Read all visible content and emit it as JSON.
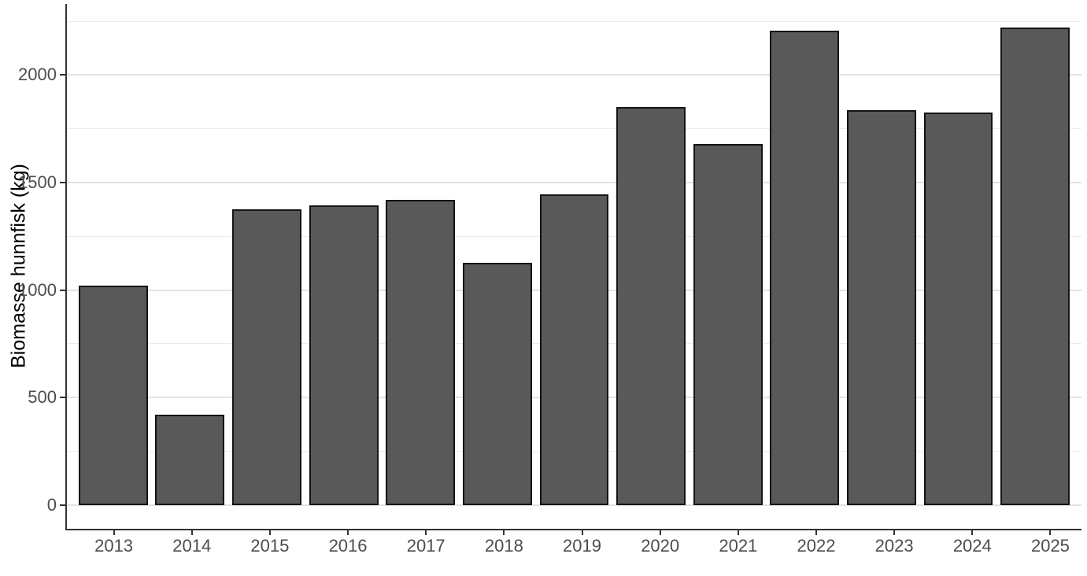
{
  "figure": {
    "background": "#ffffff"
  },
  "chart_data": {
    "type": "bar",
    "title": "",
    "xlabel": "",
    "ylabel": "Biomasse hunnfisk (kg)",
    "categories": [
      "2013",
      "2014",
      "2015",
      "2016",
      "2017",
      "2018",
      "2019",
      "2020",
      "2021",
      "2022",
      "2023",
      "2024",
      "2025"
    ],
    "values": [
      1020,
      420,
      1375,
      1395,
      1420,
      1125,
      1445,
      1850,
      1680,
      2205,
      1835,
      1825,
      2220
    ],
    "y_major_ticks": [
      0,
      500,
      1000,
      1500,
      2000
    ],
    "y_minor_ticks": [
      250,
      750,
      1250,
      1750,
      2250
    ],
    "ylim": [
      0,
      2250
    ],
    "ylim_expansion": 0.05,
    "bar_width_fraction": 0.9,
    "grid": "major+minor",
    "legend": "none",
    "colors": {
      "bar_fill": "#595959",
      "bar_border": "#141414",
      "grid_major": "#e2e2e2",
      "grid_minor": "#ebebeb",
      "axis_line": "#333333",
      "axis_text": "#4d4d4d",
      "axis_title": "#000000",
      "background": "#ffffff"
    }
  }
}
